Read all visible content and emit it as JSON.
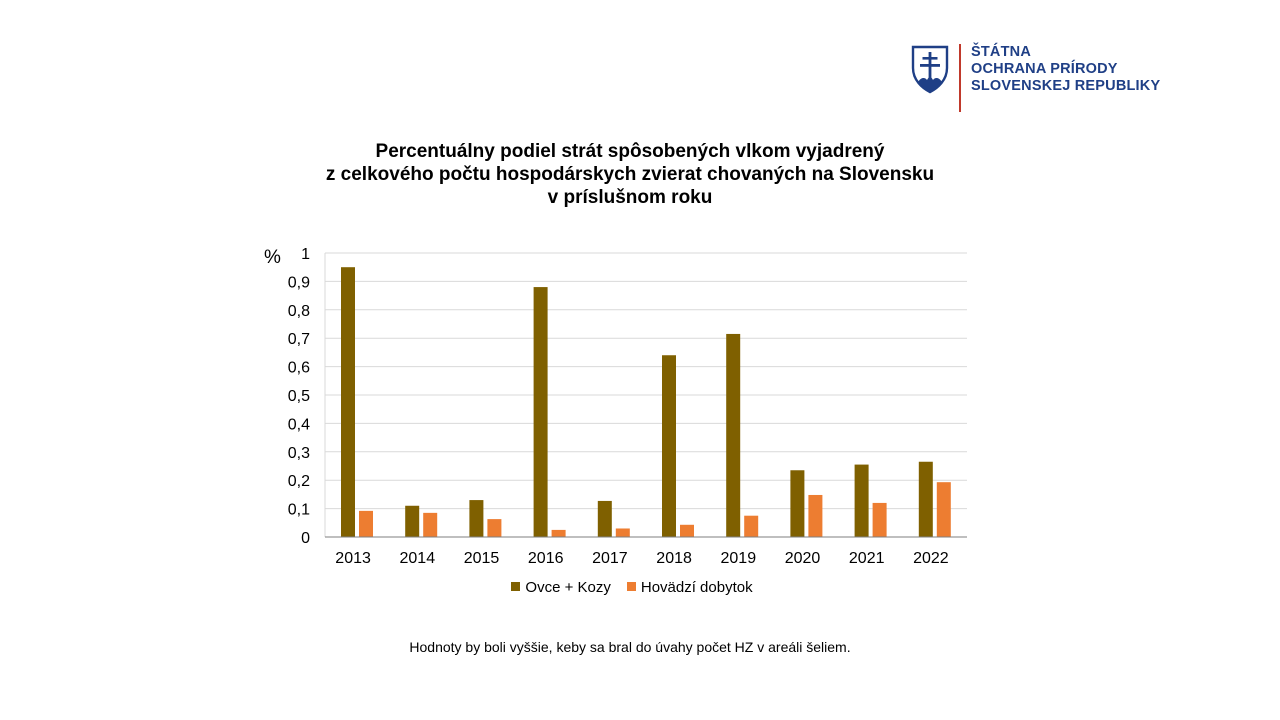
{
  "logo": {
    "lines": [
      "ŠTÁTNA",
      "OCHRANA PRÍRODY",
      "SLOVENSKEJ REPUBLIKY"
    ],
    "text_color": "#1f3f86",
    "divider_color": "#c0392b",
    "emblem_icon": "slovak-coat-of-arms-icon"
  },
  "title_lines": [
    "Percentuálny podiel strát spôsobených vlkom vyjadrený",
    "z celkového počtu hospodárskych zvierat chovaných na Slovensku",
    "v príslušnom roku"
  ],
  "chart_data": {
    "type": "bar",
    "ylabel": "%",
    "xlabel": "",
    "ylim": [
      0,
      1
    ],
    "yticks": [
      0,
      0.1,
      0.2,
      0.3,
      0.4,
      0.5,
      0.6,
      0.7,
      0.8,
      0.9,
      1
    ],
    "ytick_labels": [
      "0",
      "0,1",
      "0,2",
      "0,3",
      "0,4",
      "0,5",
      "0,6",
      "0,7",
      "0,8",
      "0,9",
      "1"
    ],
    "grid": true,
    "legend": "bottom",
    "categories": [
      "2013",
      "2014",
      "2015",
      "2016",
      "2017",
      "2018",
      "2019",
      "2020",
      "2021",
      "2022"
    ],
    "series": [
      {
        "name": "Ovce + Kozy",
        "color": "#7f6000",
        "values": [
          0.95,
          0.11,
          0.13,
          0.88,
          0.127,
          0.64,
          0.715,
          0.235,
          0.255,
          0.265
        ]
      },
      {
        "name": "Hovädzí dobytok",
        "color": "#ed7d31",
        "values": [
          0.092,
          0.085,
          0.063,
          0.025,
          0.03,
          0.043,
          0.075,
          0.148,
          0.12,
          0.193
        ]
      }
    ]
  },
  "footnote": "Hodnoty by boli vyššie, keby sa bral do úvahy počet HZ v areáli šeliem."
}
